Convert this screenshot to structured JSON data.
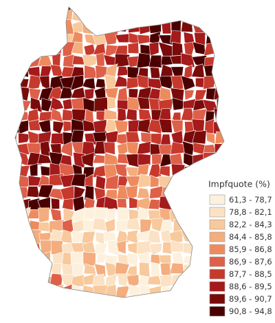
{
  "legend": {
    "title": "Impfquote (%)",
    "classes": [
      {
        "label": "61,3 - 78,7",
        "color": "#fdf1de"
      },
      {
        "label": "78,8 - 82,1",
        "color": "#fbe2c4"
      },
      {
        "label": "82,2 - 84,3",
        "color": "#f8c99c"
      },
      {
        "label": "84,4 - 85,8",
        "color": "#f4ad7e"
      },
      {
        "label": "85,9 - 86,8",
        "color": "#ee8b5e"
      },
      {
        "label": "86,9 - 87,6",
        "color": "#de6049"
      },
      {
        "label": "87,7 - 88,5",
        "color": "#c7392d"
      },
      {
        "label": "88,6 - 89,5",
        "color": "#a51a1a"
      },
      {
        "label": "89,6 - 90,7",
        "color": "#7a0b0b"
      },
      {
        "label": "90,8 - 94,8",
        "color": "#4a0000"
      }
    ]
  }
}
